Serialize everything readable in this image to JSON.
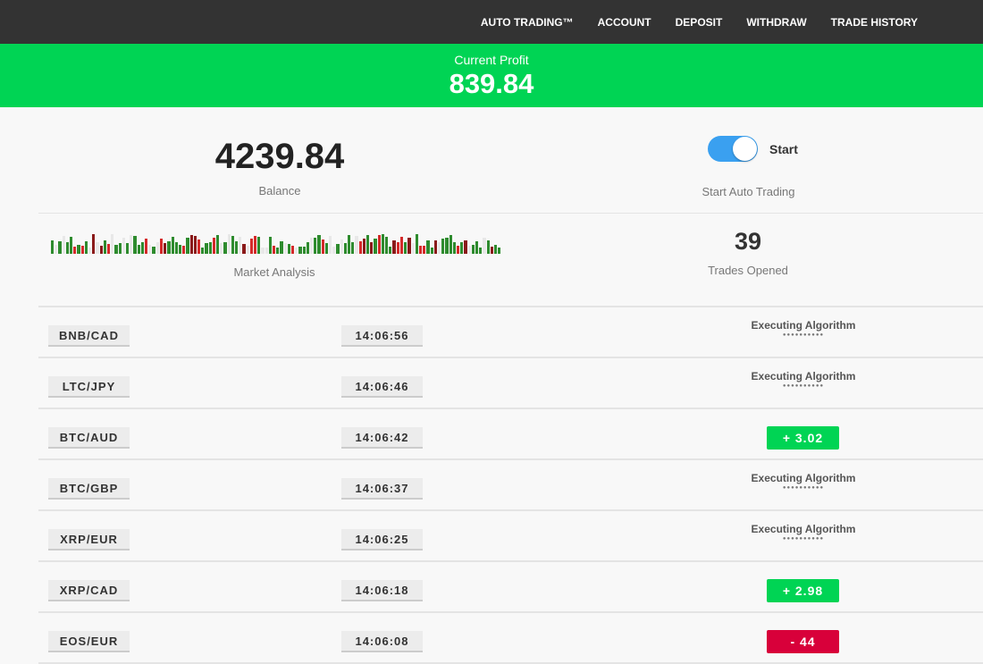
{
  "nav": [
    "AUTO TRADING™",
    "ACCOUNT",
    "DEPOSIT",
    "WITHDRAW",
    "TRADE HISTORY"
  ],
  "profit": {
    "label": "Current Profit",
    "value": "839.84"
  },
  "balance": {
    "value": "4239.84",
    "label": "Balance"
  },
  "auto": {
    "toggle_label": "Start",
    "label": "Start Auto Trading",
    "enabled": true
  },
  "market": {
    "label": "Market Analysis"
  },
  "trades": {
    "value": "39",
    "label": "Trades Opened"
  },
  "colors": {
    "green": "#00d454",
    "red": "#d8003a",
    "toggle": "#3aa0f0"
  },
  "rows": [
    {
      "pair": "BNB/CAD",
      "time": "14:06:56",
      "status": "Executing Algorithm"
    },
    {
      "pair": "LTC/JPY",
      "time": "14:06:46",
      "status": "Executing Algorithm"
    },
    {
      "pair": "BTC/AUD",
      "time": "14:06:42",
      "result": "+  3.02",
      "type": "gain"
    },
    {
      "pair": "BTC/GBP",
      "time": "14:06:37",
      "status": "Executing Algorithm"
    },
    {
      "pair": "XRP/EUR",
      "time": "14:06:25",
      "status": "Executing Algorithm"
    },
    {
      "pair": "XRP/CAD",
      "time": "14:06:18",
      "result": "+  2.98",
      "type": "gain"
    },
    {
      "pair": "EOS/EUR",
      "time": "14:06:08",
      "result": "-   44",
      "type": "loss"
    }
  ]
}
